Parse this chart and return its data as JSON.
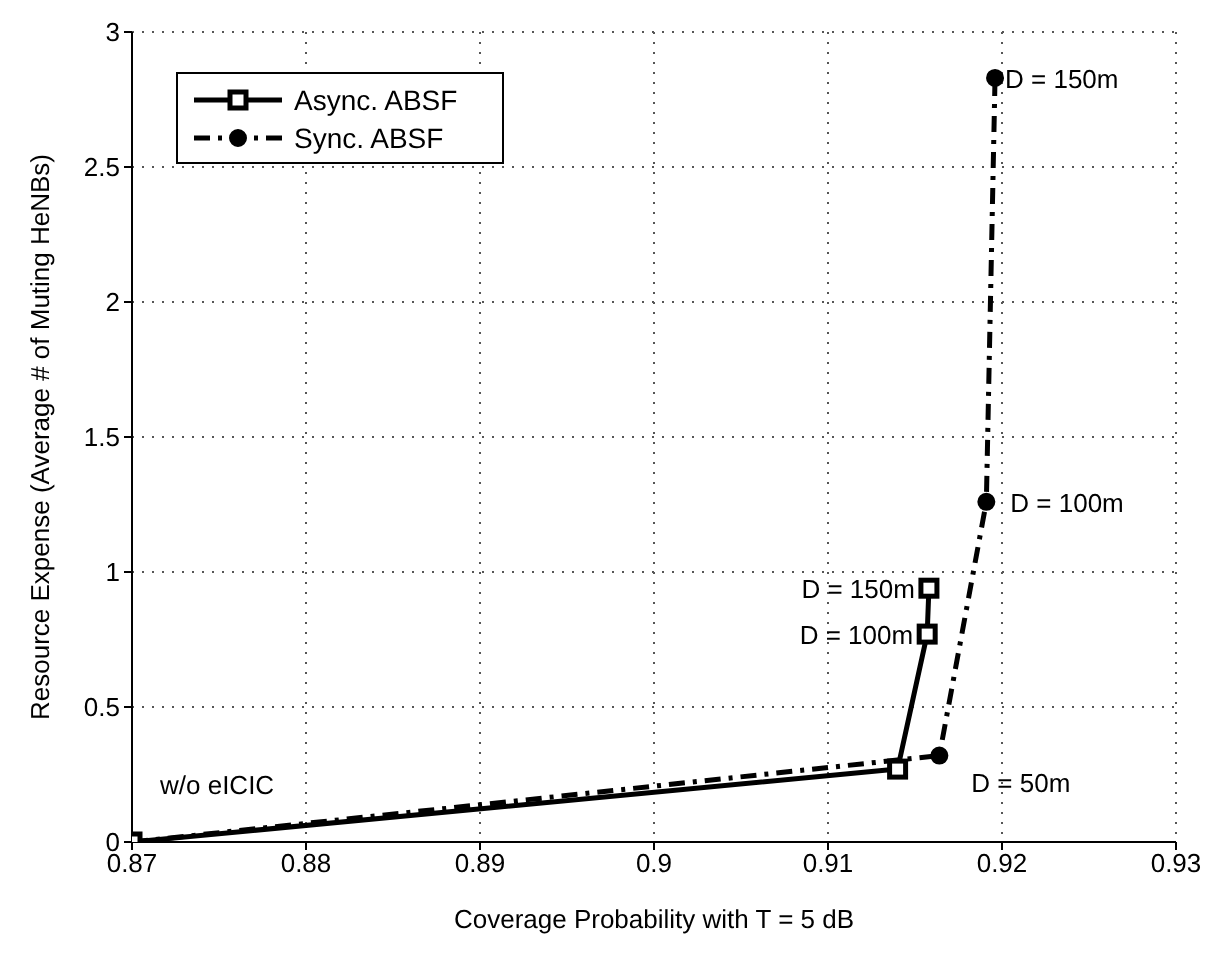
{
  "chart_data": {
    "type": "line",
    "xlabel": "Coverage Probability with T = 5 dB",
    "ylabel": "Resource Expense (Average # of Muting HeNBs)",
    "xlim": [
      0.87,
      0.93
    ],
    "xticks": [
      0.87,
      0.88,
      0.89,
      0.9,
      0.91,
      0.92,
      0.93
    ],
    "ylim": [
      0,
      3
    ],
    "yticks": [
      0,
      0.5,
      1,
      1.5,
      2,
      2.5,
      3
    ],
    "grid": true,
    "legend": "top left",
    "series": [
      {
        "name": "Async. ABSF",
        "color": "#000000",
        "marker": "square",
        "line_style": "solid",
        "x": [
          0.87,
          0.914,
          0.9157,
          0.9158
        ],
        "values": [
          0,
          0.27,
          0.77,
          0.94
        ]
      },
      {
        "name": "Sync. ABSF",
        "color": "#000000",
        "marker": "circle",
        "line_style": "dashed",
        "x": [
          0.87,
          0.9164,
          0.9191,
          0.9196
        ],
        "values": [
          0,
          0.32,
          1.26,
          2.83
        ]
      }
    ],
    "annotations": [
      {
        "text": "w/o eICIC",
        "x": 0.87,
        "y": 0
      },
      {
        "text": "D = 150m",
        "x": 0.9196,
        "y": 2.83
      },
      {
        "text": "D = 100m",
        "x": 0.9191,
        "y": 1.26
      },
      {
        "text": "D = 150m",
        "x": 0.9158,
        "y": 0.94
      },
      {
        "text": "D = 100m",
        "x": 0.9157,
        "y": 0.77
      },
      {
        "text": "D = 50m",
        "x": 0.9164,
        "y": 0.32
      }
    ]
  }
}
